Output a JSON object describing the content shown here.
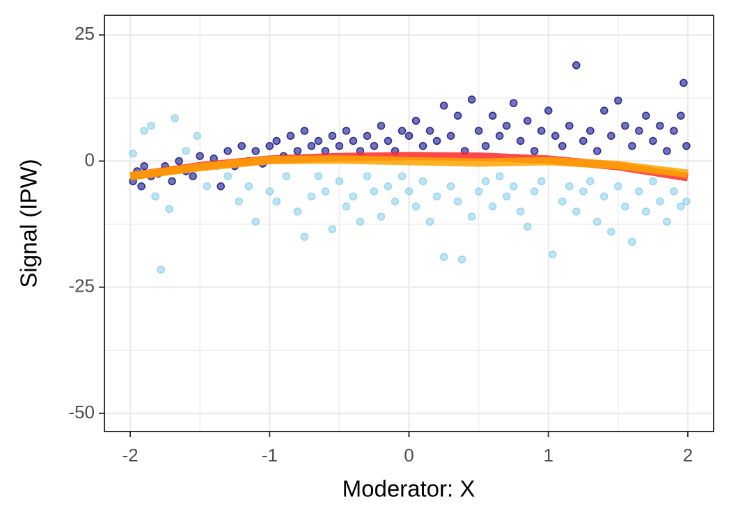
{
  "chart_data": {
    "type": "scatter",
    "x_label": "Moderator: X",
    "y_label": "Signal (IPW)",
    "xlim": [
      -2.185,
      2.185
    ],
    "ylim": [
      -53.6,
      28.9
    ],
    "xticks": [
      -2,
      -1,
      0,
      1,
      2
    ],
    "yticks": [
      25,
      0,
      -25,
      -50
    ],
    "grid": true,
    "series": [
      {
        "kind": "points",
        "color": "#87ceeb",
        "x": [
          -1.98,
          -1.9,
          -1.85,
          -1.82,
          -1.78,
          -1.72,
          -1.68,
          -1.6,
          -1.52,
          -1.45,
          -1.38,
          -1.3,
          -1.22,
          -1.15,
          -1.1,
          -1.0,
          -0.95,
          -0.88,
          -0.8,
          -0.75,
          -0.7,
          -0.65,
          -0.6,
          -0.55,
          -0.5,
          -0.45,
          -0.4,
          -0.35,
          -0.3,
          -0.25,
          -0.2,
          -0.15,
          -0.1,
          -0.05,
          0,
          0.05,
          0.1,
          0.15,
          0.2,
          0.25,
          0.3,
          0.35,
          0.38,
          0.45,
          0.5,
          0.55,
          0.6,
          0.65,
          0.7,
          0.75,
          0.8,
          0.85,
          0.9,
          0.95,
          1.03,
          1.1,
          1.15,
          1.2,
          1.25,
          1.3,
          1.35,
          1.4,
          1.45,
          1.5,
          1.55,
          1.6,
          1.65,
          1.7,
          1.75,
          1.8,
          1.85,
          1.9,
          1.95,
          1.99
        ],
        "values": [
          1.5,
          6,
          7,
          -7,
          -21.5,
          -9.5,
          8.5,
          2,
          5,
          -5,
          -1,
          -3,
          -8,
          -5,
          -12,
          -6,
          -8,
          -3,
          -10,
          -15,
          -7,
          -3,
          -6,
          -13.5,
          -4,
          -9,
          -7,
          -12,
          -3,
          -6,
          -11,
          -5,
          -8,
          -3,
          -6,
          -9,
          -4,
          -12,
          -7,
          -19,
          -5,
          -8,
          -19.5,
          -11,
          -6,
          -4,
          -9,
          -3,
          -7,
          -5,
          -10,
          -13,
          -6,
          -4,
          -18.5,
          -8,
          -5,
          -10,
          -6,
          -4,
          -12,
          -7,
          -14,
          -5,
          -9,
          -16,
          -6,
          -10,
          -4,
          -8,
          -12,
          -6,
          -9,
          -8
        ]
      },
      {
        "kind": "points",
        "color": "#00007f",
        "x": [
          -1.98,
          -1.95,
          -1.92,
          -1.9,
          -1.85,
          -1.8,
          -1.75,
          -1.7,
          -1.65,
          -1.6,
          -1.55,
          -1.5,
          -1.45,
          -1.4,
          -1.35,
          -1.3,
          -1.25,
          -1.2,
          -1.15,
          -1.1,
          -1.05,
          -1.0,
          -0.95,
          -0.9,
          -0.85,
          -0.8,
          -0.75,
          -0.7,
          -0.65,
          -0.6,
          -0.55,
          -0.5,
          -0.45,
          -0.4,
          -0.35,
          -0.3,
          -0.25,
          -0.2,
          -0.15,
          -0.1,
          -0.05,
          0,
          0.05,
          0.1,
          0.15,
          0.2,
          0.25,
          0.3,
          0.35,
          0.4,
          0.45,
          0.5,
          0.55,
          0.6,
          0.65,
          0.7,
          0.75,
          0.8,
          0.85,
          0.9,
          0.95,
          1.0,
          1.05,
          1.1,
          1.15,
          1.2,
          1.25,
          1.3,
          1.35,
          1.4,
          1.45,
          1.5,
          1.55,
          1.6,
          1.65,
          1.7,
          1.75,
          1.8,
          1.85,
          1.9,
          1.95,
          1.97,
          1.99
        ],
        "values": [
          -4,
          -2,
          -5,
          -1,
          -3,
          -2.5,
          -1,
          -4,
          0,
          -2,
          -3,
          1,
          -1,
          0.5,
          -5,
          2,
          -1,
          3,
          0,
          2,
          -0.5,
          3,
          4,
          1,
          5,
          2,
          6,
          3,
          4,
          2,
          5,
          3,
          6,
          4,
          2,
          5,
          3,
          7,
          4,
          2,
          6,
          5,
          8,
          3,
          6,
          4,
          11,
          5,
          9,
          2,
          12.2,
          6,
          3,
          9,
          5,
          7,
          11.5,
          4,
          8,
          2,
          6,
          10,
          5,
          3,
          7,
          19,
          4,
          6,
          2,
          10,
          5,
          12,
          7,
          3,
          6,
          9,
          4,
          7,
          2,
          6,
          9,
          15.5,
          3
        ]
      },
      {
        "kind": "line",
        "color": "#ff2a2a",
        "x": [
          -2,
          -1.5,
          -1,
          -0.5,
          0,
          0.5,
          1,
          1.5,
          2
        ],
        "values": [
          -3,
          -1,
          0.3,
          0.8,
          1,
          0.9,
          0.3,
          -1,
          -3.2
        ]
      },
      {
        "kind": "line",
        "color": "#ffa500",
        "x": [
          -2,
          -1.5,
          -1,
          -0.5,
          0,
          0.5,
          1,
          1.5,
          2
        ],
        "values": [
          -3,
          -1.2,
          0.2,
          0.3,
          0,
          -0.3,
          0,
          -0.8,
          -2.5
        ]
      }
    ]
  }
}
